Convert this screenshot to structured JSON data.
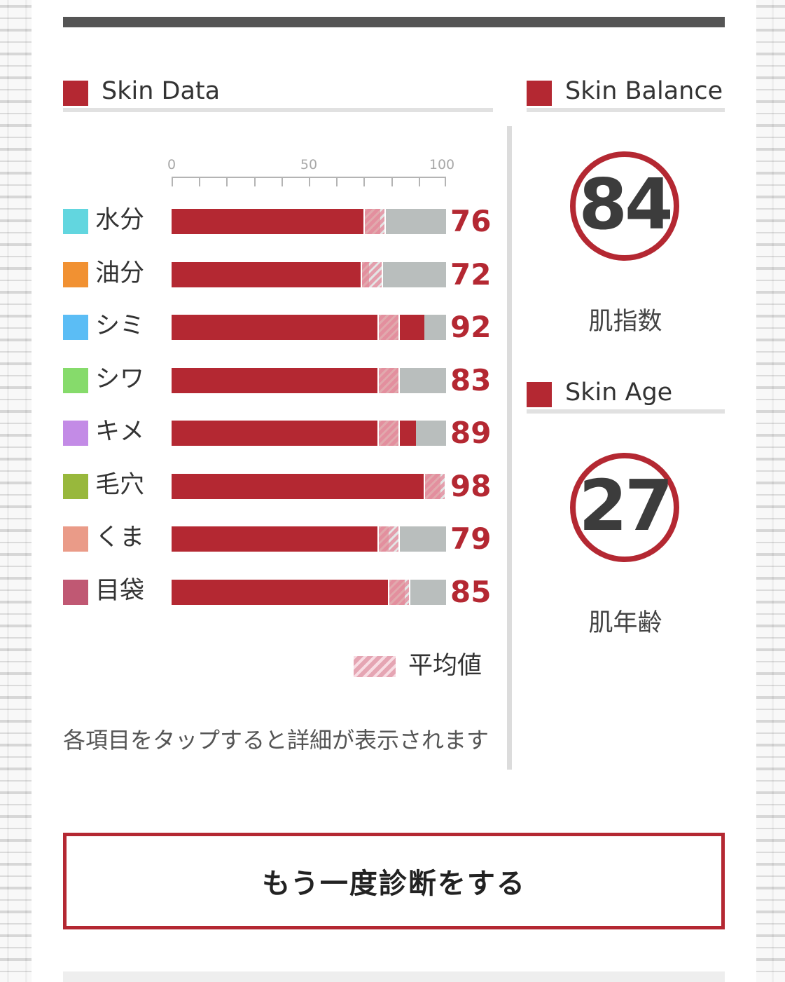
{
  "skin_data": {
    "title": "Skin Data",
    "axis": {
      "min": 0,
      "max": 100,
      "labels": [
        "0",
        "50",
        "100"
      ]
    },
    "rows": [
      {
        "label": "水分",
        "value": 76,
        "average": 74,
        "color": "#62d6df"
      },
      {
        "label": "油分",
        "value": 72,
        "average": 73,
        "color": "#f19132"
      },
      {
        "label": "シミ",
        "value": 92,
        "average": 79,
        "color": "#5bbdf5"
      },
      {
        "label": "シワ",
        "value": 83,
        "average": 79,
        "color": "#86db6b"
      },
      {
        "label": "キメ",
        "value": 89,
        "average": 79,
        "color": "#c38be6"
      },
      {
        "label": "毛穴",
        "value": 98,
        "average": 96,
        "color": "#98b83c"
      },
      {
        "label": "くま",
        "value": 79,
        "average": 79,
        "color": "#ea9b88"
      },
      {
        "label": "目袋",
        "value": 85,
        "average": 83,
        "color": "#c05873"
      }
    ],
    "legend_label": "平均値",
    "note": "各項目をタップすると詳細が表示されます"
  },
  "skin_balance": {
    "title": "Skin Balance",
    "score": "84",
    "caption": "肌指数"
  },
  "skin_age": {
    "title": "Skin Age",
    "score": "27",
    "caption": "肌年齢"
  },
  "retry_button": {
    "label": "もう一度診断をする"
  },
  "colors": {
    "accent": "#b42832",
    "track": "#b9bebd"
  }
}
